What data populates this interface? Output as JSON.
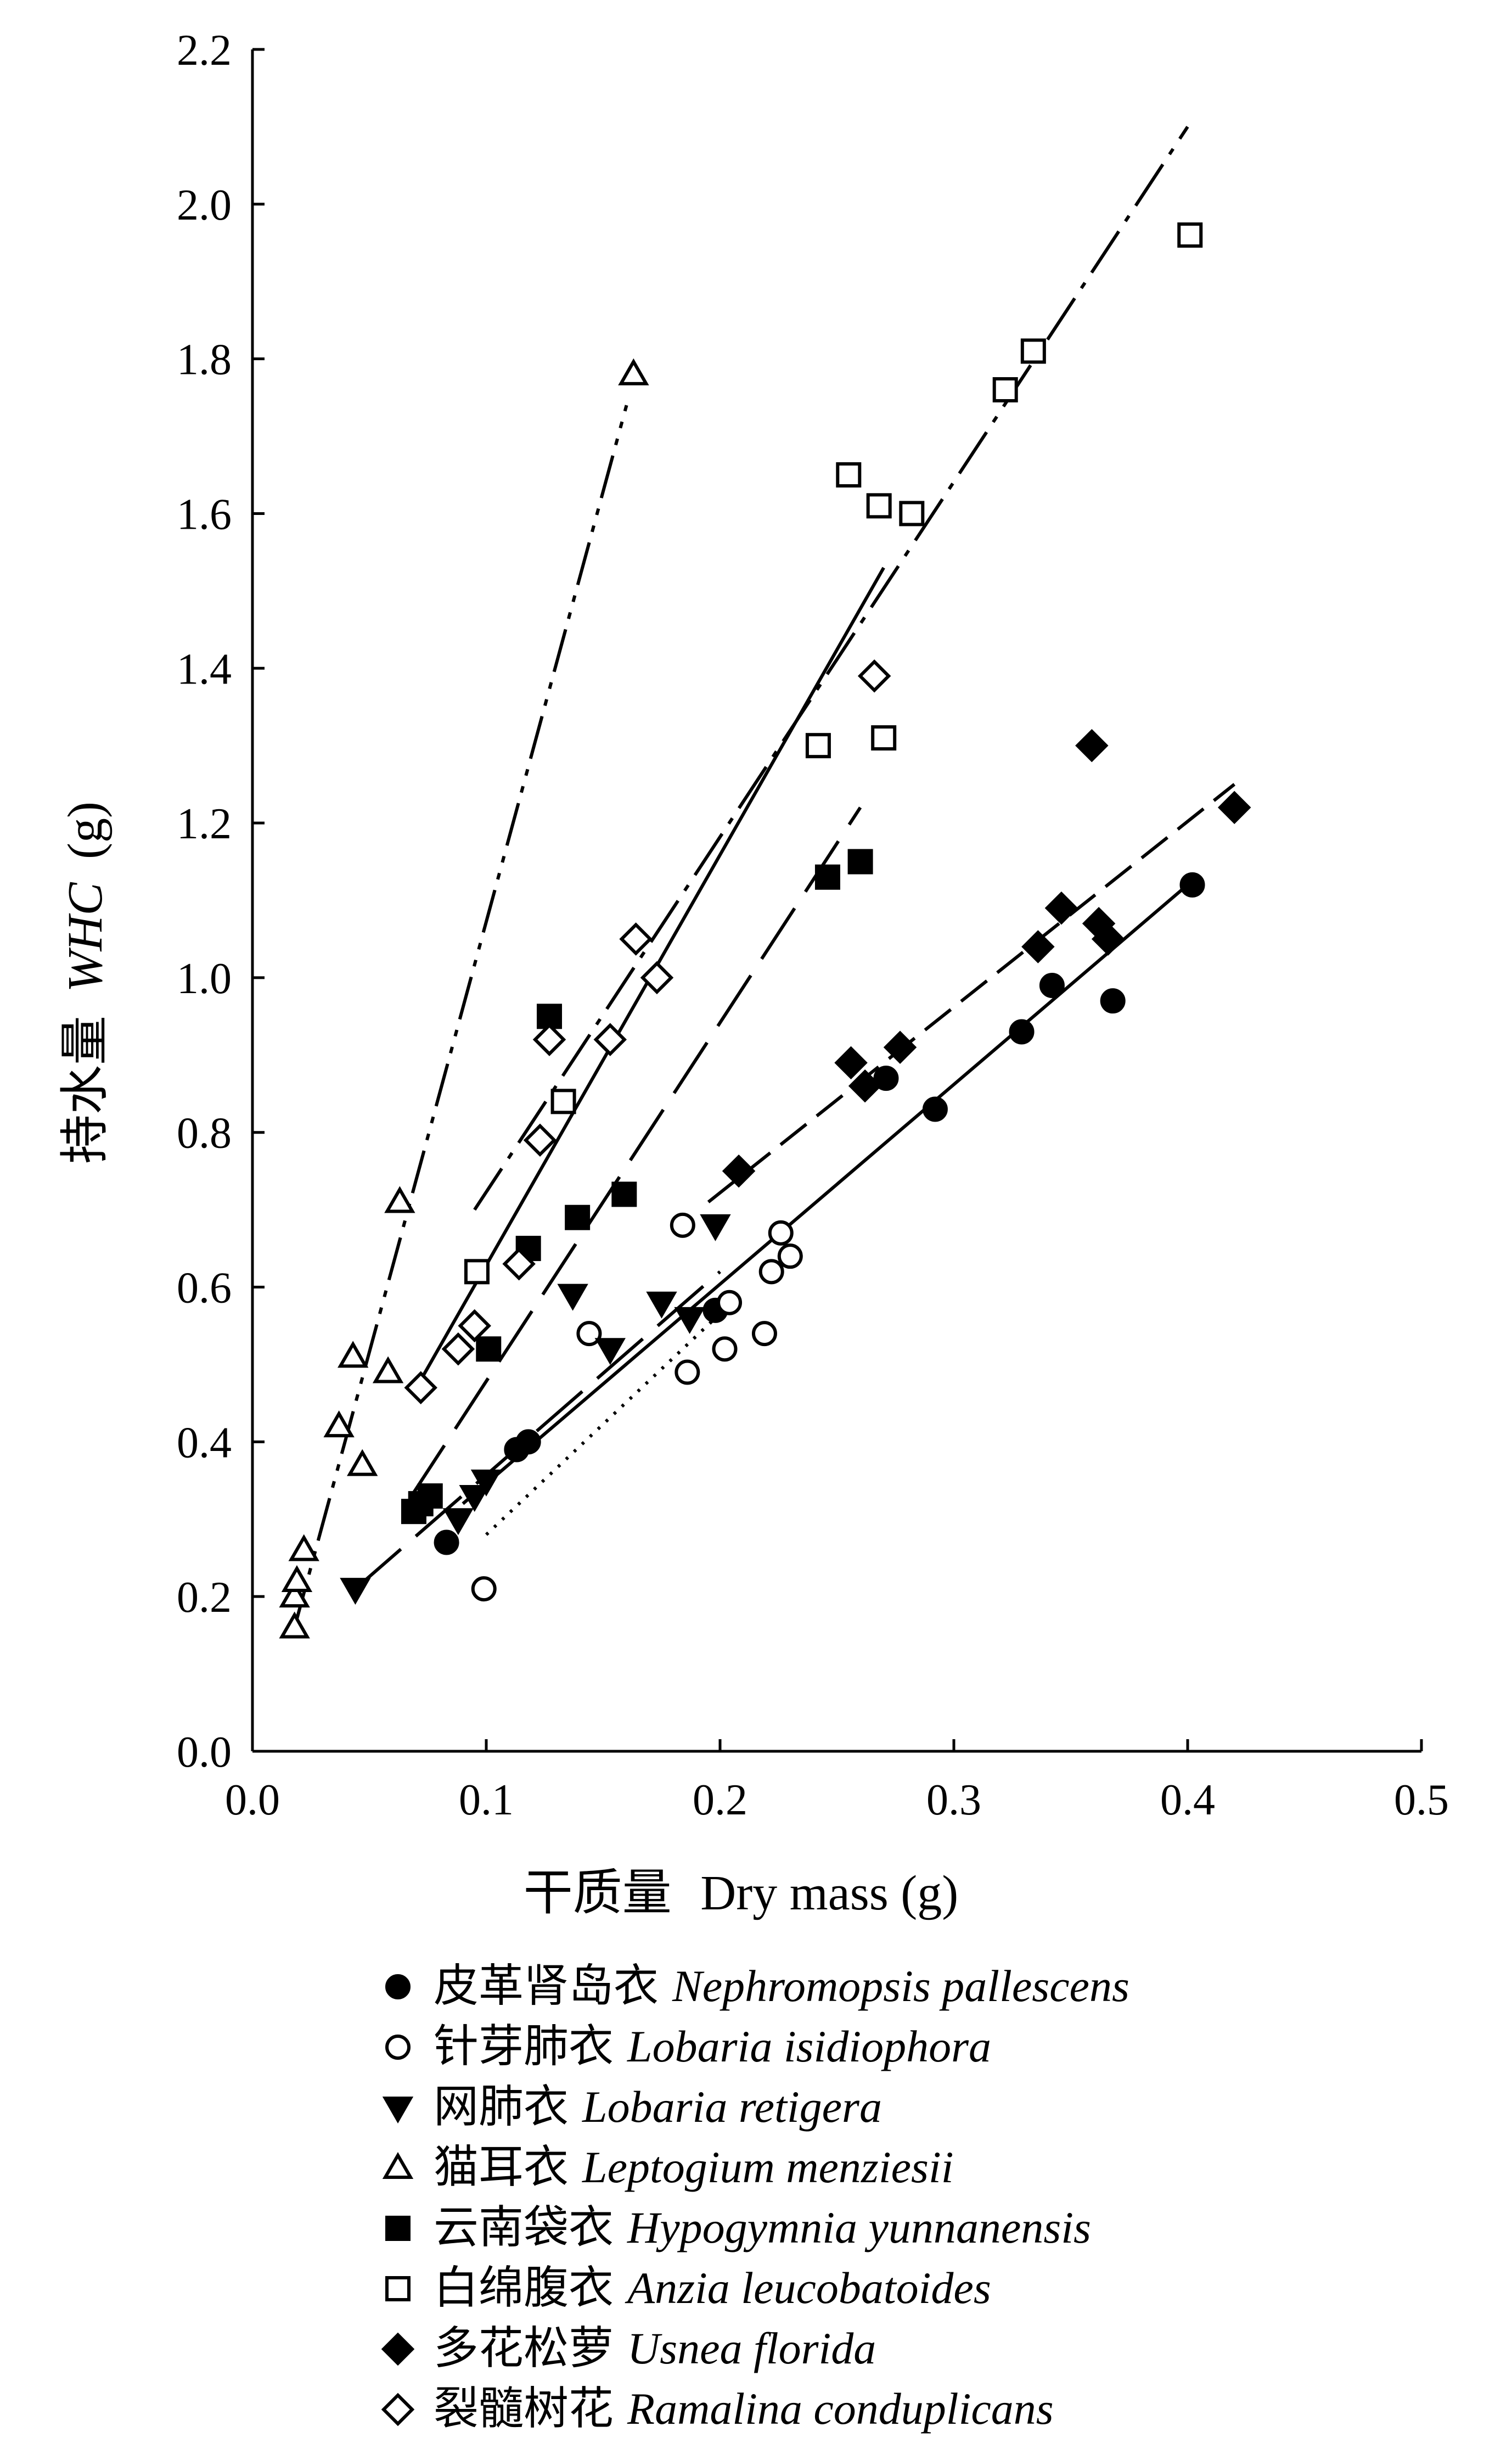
{
  "chart_data": {
    "type": "scatter",
    "xlabel_cn": "干质量",
    "xlabel_en": "Dry mass (g)",
    "ylabel_cn": "持水量",
    "ylabel_en_italic": "WHC",
    "ylabel_unit": "(g)",
    "xlim": [
      0,
      0.5
    ],
    "ylim": [
      0,
      2.2
    ],
    "xticks": [
      "0.0",
      "0.1",
      "0.2",
      "0.3",
      "0.4",
      "0.5"
    ],
    "yticks": [
      "0.0",
      "0.2",
      "0.4",
      "0.6",
      "0.8",
      "1.0",
      "1.2",
      "1.4",
      "1.6",
      "1.8",
      "2.0",
      "2.2"
    ],
    "legend_placement": "below",
    "series": [
      {
        "name_cn": "皮革肾岛衣",
        "name_latin": "Nephromopsis pallescens",
        "marker": "circle",
        "filled": true,
        "line_style": "solid",
        "points": [
          [
            0.083,
            0.27
          ],
          [
            0.113,
            0.39
          ],
          [
            0.118,
            0.4
          ],
          [
            0.198,
            0.57
          ],
          [
            0.271,
            0.87
          ],
          [
            0.292,
            0.83
          ],
          [
            0.329,
            0.93
          ],
          [
            0.342,
            0.99
          ],
          [
            0.368,
            0.97
          ],
          [
            0.402,
            1.12
          ]
        ],
        "fit": [
          [
            0.09,
            0.32
          ],
          [
            0.4,
            1.12
          ]
        ]
      },
      {
        "name_cn": "针芽肺衣",
        "name_latin": "Lobaria isidiophora",
        "marker": "circle",
        "filled": false,
        "line_style": "dotted",
        "points": [
          [
            0.099,
            0.21
          ],
          [
            0.144,
            0.54
          ],
          [
            0.184,
            0.68
          ],
          [
            0.186,
            0.49
          ],
          [
            0.202,
            0.52
          ],
          [
            0.204,
            0.58
          ],
          [
            0.219,
            0.54
          ],
          [
            0.222,
            0.62
          ],
          [
            0.226,
            0.67
          ],
          [
            0.23,
            0.64
          ]
        ],
        "fit": [
          [
            0.1,
            0.28
          ],
          [
            0.205,
            0.58
          ]
        ]
      },
      {
        "name_cn": "网肺衣",
        "name_latin": "Lobaria retigera",
        "marker": "triangle-down",
        "filled": true,
        "line_style": "long-dash",
        "points": [
          [
            0.044,
            0.21
          ],
          [
            0.088,
            0.3
          ],
          [
            0.095,
            0.33
          ],
          [
            0.1,
            0.35
          ],
          [
            0.137,
            0.59
          ],
          [
            0.153,
            0.52
          ],
          [
            0.175,
            0.58
          ],
          [
            0.187,
            0.56
          ],
          [
            0.198,
            0.68
          ]
        ],
        "fit": [
          [
            0.044,
            0.21
          ],
          [
            0.2,
            0.62
          ]
        ]
      },
      {
        "name_cn": "猫耳衣",
        "name_latin": "Leptogium menziesii",
        "marker": "triangle-up",
        "filled": false,
        "line_style": "dash-dot-dot",
        "points": [
          [
            0.018,
            0.16
          ],
          [
            0.018,
            0.2
          ],
          [
            0.019,
            0.22
          ],
          [
            0.022,
            0.26
          ],
          [
            0.037,
            0.42
          ],
          [
            0.043,
            0.51
          ],
          [
            0.047,
            0.37
          ],
          [
            0.058,
            0.49
          ],
          [
            0.063,
            0.71
          ],
          [
            0.163,
            1.78
          ]
        ],
        "fit": [
          [
            0.018,
            0.16
          ],
          [
            0.16,
            1.74
          ]
        ]
      },
      {
        "name_cn": "云南袋衣",
        "name_latin": "Hypogymnia yunnanensis",
        "marker": "square",
        "filled": true,
        "line_style": "long-dash",
        "points": [
          [
            0.069,
            0.31
          ],
          [
            0.072,
            0.32
          ],
          [
            0.076,
            0.33
          ],
          [
            0.101,
            0.52
          ],
          [
            0.118,
            0.65
          ],
          [
            0.127,
            0.95
          ],
          [
            0.139,
            0.69
          ],
          [
            0.159,
            0.72
          ],
          [
            0.246,
            1.13
          ],
          [
            0.26,
            1.15
          ]
        ],
        "fit": [
          [
            0.068,
            0.33
          ],
          [
            0.26,
            1.22
          ]
        ]
      },
      {
        "name_cn": "白绵腹衣",
        "name_latin": "Anzia leucobatoides",
        "marker": "square",
        "filled": false,
        "line_style": "solid",
        "points": [
          [
            0.096,
            0.62
          ],
          [
            0.133,
            0.84
          ],
          [
            0.242,
            1.3
          ],
          [
            0.255,
            1.65
          ],
          [
            0.268,
            1.61
          ],
          [
            0.27,
            1.31
          ],
          [
            0.282,
            1.6
          ],
          [
            0.322,
            1.76
          ],
          [
            0.334,
            1.81
          ],
          [
            0.401,
            1.96
          ]
        ],
        "fit": [
          [
            0.072,
            0.48
          ],
          [
            0.27,
            1.53
          ]
        ]
      },
      {
        "name_cn": "多花松萝",
        "name_latin": "Usnea florida",
        "marker": "diamond",
        "filled": true,
        "line_style": "dashed",
        "points": [
          [
            0.208,
            0.75
          ],
          [
            0.256,
            0.89
          ],
          [
            0.262,
            0.86
          ],
          [
            0.277,
            0.91
          ],
          [
            0.336,
            1.04
          ],
          [
            0.346,
            1.09
          ],
          [
            0.359,
            1.3
          ],
          [
            0.362,
            1.07
          ],
          [
            0.366,
            1.05
          ],
          [
            0.42,
            1.22
          ]
        ],
        "fit": [
          [
            0.195,
            0.71
          ],
          [
            0.42,
            1.25
          ]
        ]
      },
      {
        "name_cn": "裂髓树花",
        "name_latin": "Ramalina conduplicans",
        "marker": "diamond",
        "filled": false,
        "line_style": "dash-dot",
        "points": [
          [
            0.072,
            0.47
          ],
          [
            0.088,
            0.52
          ],
          [
            0.095,
            0.55
          ],
          [
            0.114,
            0.63
          ],
          [
            0.123,
            0.79
          ],
          [
            0.127,
            0.92
          ],
          [
            0.153,
            0.92
          ],
          [
            0.164,
            1.05
          ],
          [
            0.173,
            1.0
          ],
          [
            0.266,
            1.39
          ]
        ],
        "fit": [
          [
            0.095,
            0.7
          ],
          [
            0.4,
            2.1
          ]
        ]
      }
    ]
  }
}
